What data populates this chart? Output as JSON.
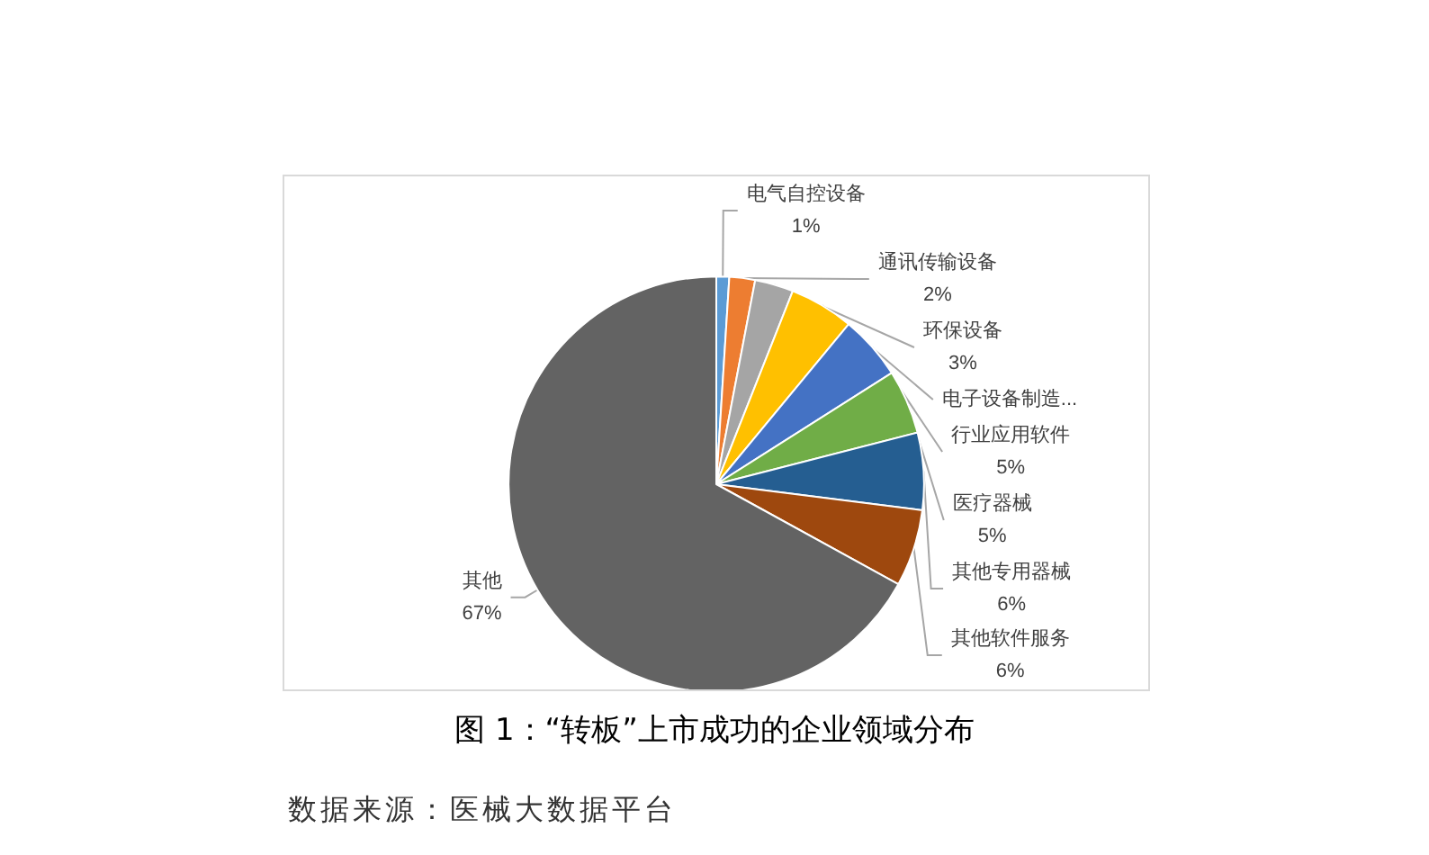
{
  "chart_data": {
    "type": "pie",
    "title": "图 1：“转板”上市成功的企业领域分布",
    "annotations": [
      "数据来源：医械大数据平台"
    ],
    "categories": [
      "电气自控设备",
      "通讯传输设备",
      "环保设备",
      "电子设备制造...",
      "行业应用软件",
      "医疗器械",
      "其他专用器械",
      "其他软件服务",
      "其他"
    ],
    "values": [
      1,
      2,
      3,
      5,
      5,
      5,
      6,
      6,
      67
    ],
    "value_labels": [
      "1%",
      "2%",
      "3%",
      null,
      "5%",
      "5%",
      "6%",
      "6%",
      "67%"
    ],
    "colors": [
      "#5b9bd5",
      "#ed7d31",
      "#a5a5a5",
      "#ffc000",
      "#4472c4",
      "#70ad47",
      "#255e91",
      "#9e480e",
      "#636363"
    ],
    "legend": false
  }
}
